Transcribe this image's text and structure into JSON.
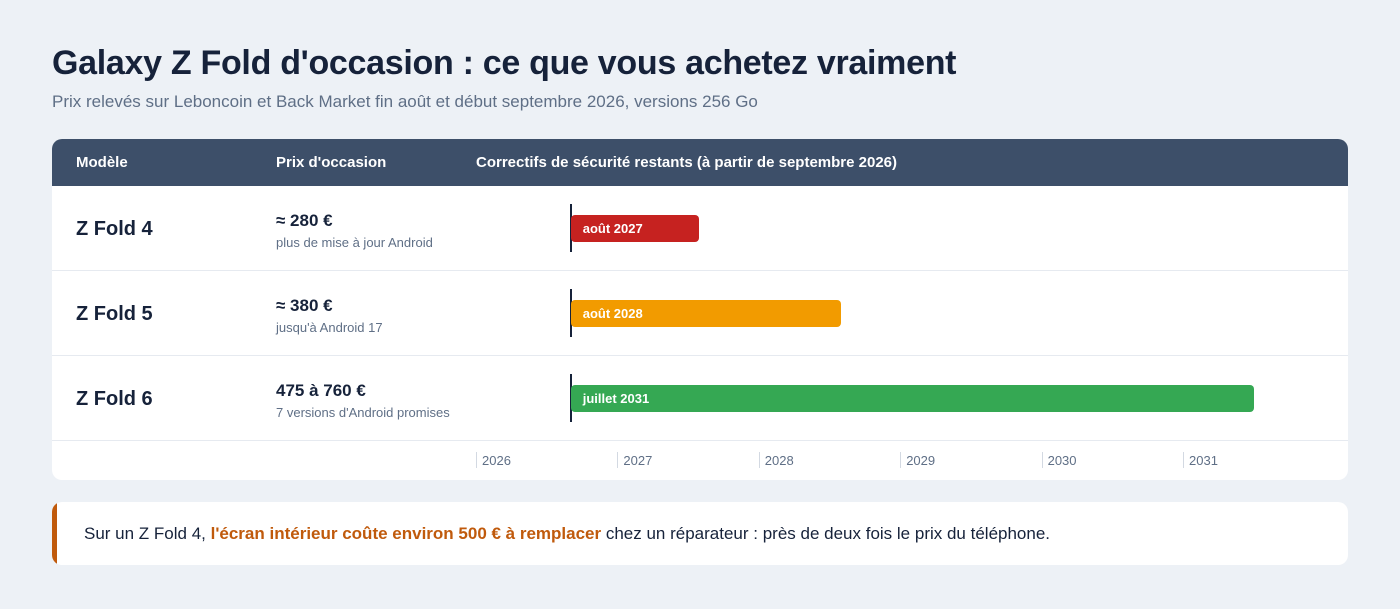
{
  "title": "Galaxy Z Fold d'occasion : ce que vous achetez vraiment",
  "subtitle": "Prix relevés sur Leboncoin et Back Market fin août et début septembre 2026, versions 256 Go",
  "table": {
    "headers": [
      "Modèle",
      "Prix d'occasion",
      "Correctifs de sécurité restants (à partir de septembre 2026)"
    ],
    "axis_years": [
      "2026",
      "2027",
      "2028",
      "2029",
      "2030",
      "2031"
    ],
    "rows": [
      {
        "model": "Z Fold 4",
        "price": "≈ 280 €",
        "note": "plus de mise à jour Android",
        "end_label": "août 2027",
        "end_year_frac": 2027.58,
        "color": "#c62220"
      },
      {
        "model": "Z Fold 5",
        "price": "≈ 380 €",
        "note": "jusqu'à Android 17",
        "end_label": "août 2028",
        "end_year_frac": 2028.58,
        "color": "#f29b00"
      },
      {
        "model": "Z Fold 6",
        "price": "475 à 760 €",
        "note": "7 versions d'Android promises",
        "end_label": "juillet 2031",
        "end_year_frac": 2031.5,
        "color": "#35a853"
      }
    ],
    "start_year_frac": 2026.67
  },
  "callout": {
    "prefix": "Sur un Z Fold 4, ",
    "highlight": "l'écran intérieur coûte environ 500 € à remplacer",
    "suffix": " chez un réparateur : près de deux fois le prix du téléphone.",
    "accent_color": "#c05a0c"
  }
}
